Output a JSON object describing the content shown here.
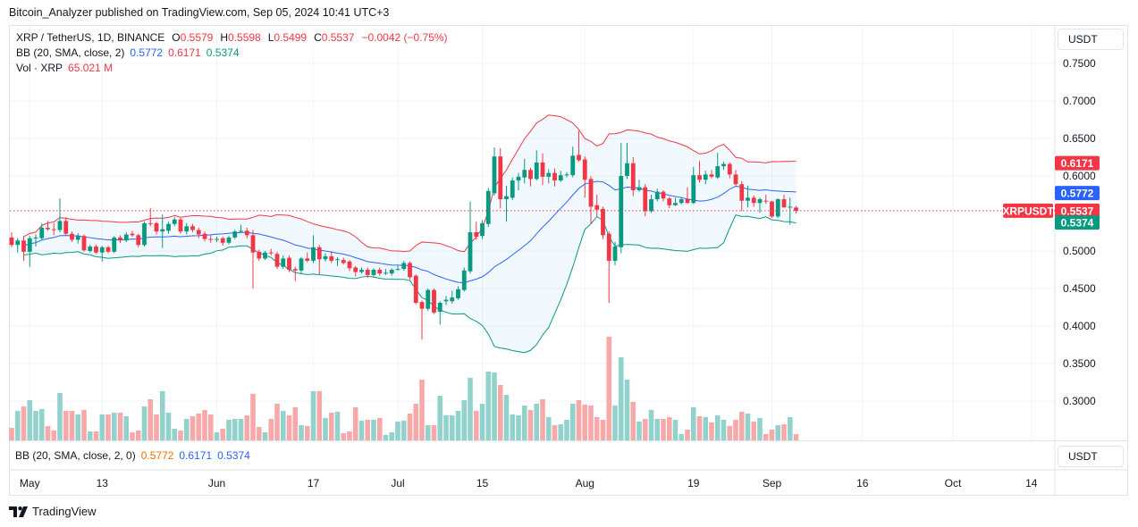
{
  "header": {
    "published": "Bitcoin_Analyzer published on TradingView.com, Sep 05, 2024 10:41 UTC+3"
  },
  "legend": {
    "symbol": "XRP / TetherUS, 1D, BINANCE",
    "o_label": "O",
    "o": "0.5579",
    "h_label": "H",
    "h": "0.5598",
    "l_label": "L",
    "l": "0.5499",
    "c_label": "C",
    "c": "0.5537",
    "change": "−0.0042 (−0.75%)",
    "bb_label": "BB (20, SMA, close, 2)",
    "bb_basis": "0.5772",
    "bb_upper": "0.6171",
    "bb_lower": "0.5374",
    "vol_label": "Vol · XRP",
    "vol": "65.021 M"
  },
  "bb_pane": {
    "label": "BB (20, SMA, close, 2, 0)",
    "v1": "0.5772",
    "v2": "0.6171",
    "v3": "0.5374"
  },
  "currency_button": "USDT",
  "currency_button_2": "USDT",
  "logo": {
    "text": "TradingView"
  },
  "price_tags": {
    "upper": "0.6171",
    "basis": "0.5772",
    "symbol": "XRPUSDT",
    "last": "0.5537",
    "lower": "0.5374",
    "volume": "65.021 M"
  },
  "colors": {
    "up": "#089981",
    "down": "#f23645",
    "bb_basis": "#2962ff",
    "bb_upper": "#f23645",
    "bb_lower": "#089981",
    "vol_up": "#92d2cc",
    "vol_down": "#f7a9a9",
    "grid": "#f0f3fa"
  },
  "icons": {
    "logo": "tradingview-logo"
  },
  "chart_data": {
    "type": "candlestick",
    "symbol": "XRPUSDT",
    "interval": "1D",
    "indicators": [
      "Bollinger Bands (20, SMA, close, 2)",
      "Volume"
    ],
    "last_price": 0.5537,
    "bb_last": {
      "basis": 0.5772,
      "upper": 0.6171,
      "lower": 0.5374
    },
    "ylim": [
      0.28,
      0.78
    ],
    "yticks": [
      {
        "value": 0.75,
        "label": "0.7500"
      },
      {
        "value": 0.7,
        "label": "0.7000"
      },
      {
        "value": 0.65,
        "label": "0.6500"
      },
      {
        "value": 0.6,
        "label": "0.6000"
      },
      {
        "value": 0.5,
        "label": "0.5000"
      },
      {
        "value": 0.45,
        "label": "0.4500"
      },
      {
        "value": 0.4,
        "label": "0.4000"
      },
      {
        "value": 0.35,
        "label": "0.3500"
      },
      {
        "value": 0.3,
        "label": "0.3000"
      }
    ],
    "xticks": [
      {
        "date": "2024-05-01",
        "label": "May"
      },
      {
        "date": "2024-05-13",
        "label": "13"
      },
      {
        "date": "2024-06-01",
        "label": "Jun"
      },
      {
        "date": "2024-06-17",
        "label": "17"
      },
      {
        "date": "2024-07-01",
        "label": "Jul"
      },
      {
        "date": "2024-07-15",
        "label": "15"
      },
      {
        "date": "2024-08-01",
        "label": "Aug"
      },
      {
        "date": "2024-08-19",
        "label": "19"
      },
      {
        "date": "2024-09-01",
        "label": "Sep"
      },
      {
        "date": "2024-09-16",
        "label": "16"
      },
      {
        "date": "2024-10-01",
        "label": "Oct"
      },
      {
        "date": "2024-10-14",
        "label": "14"
      }
    ],
    "volume_unit": "M",
    "columns": [
      "date",
      "open",
      "high",
      "low",
      "close",
      "volume"
    ],
    "candles": [
      [
        "2024-04-28",
        0.518,
        0.525,
        0.505,
        0.508,
        130
      ],
      [
        "2024-04-29",
        0.508,
        0.517,
        0.498,
        0.514,
        307
      ],
      [
        "2024-04-30",
        0.514,
        0.52,
        0.487,
        0.499,
        353
      ],
      [
        "2024-05-01",
        0.499,
        0.52,
        0.479,
        0.517,
        419
      ],
      [
        "2024-05-02",
        0.517,
        0.522,
        0.506,
        0.518,
        307
      ],
      [
        "2024-05-03",
        0.517,
        0.537,
        0.515,
        0.531,
        326
      ],
      [
        "2024-05-04",
        0.531,
        0.54,
        0.527,
        0.529,
        149
      ],
      [
        "2024-05-05",
        0.529,
        0.537,
        0.521,
        0.528,
        102
      ],
      [
        "2024-05-06",
        0.528,
        0.57,
        0.525,
        0.54,
        493
      ],
      [
        "2024-05-07",
        0.54,
        0.545,
        0.52,
        0.523,
        307
      ],
      [
        "2024-05-08",
        0.523,
        0.526,
        0.512,
        0.515,
        307
      ],
      [
        "2024-05-09",
        0.515,
        0.524,
        0.51,
        0.52,
        270
      ],
      [
        "2024-05-10",
        0.52,
        0.522,
        0.499,
        0.501,
        316
      ],
      [
        "2024-05-11",
        0.5,
        0.508,
        0.498,
        0.506,
        93
      ],
      [
        "2024-05-12",
        0.506,
        0.508,
        0.496,
        0.498,
        93
      ],
      [
        "2024-05-13",
        0.498,
        0.507,
        0.486,
        0.505,
        270
      ],
      [
        "2024-05-14",
        0.505,
        0.507,
        0.497,
        0.499,
        270
      ],
      [
        "2024-05-15",
        0.499,
        0.52,
        0.497,
        0.518,
        288
      ],
      [
        "2024-05-16",
        0.518,
        0.521,
        0.511,
        0.514,
        288
      ],
      [
        "2024-05-17",
        0.514,
        0.525,
        0.512,
        0.522,
        251
      ],
      [
        "2024-05-18",
        0.523,
        0.527,
        0.519,
        0.521,
        84
      ],
      [
        "2024-05-19",
        0.521,
        0.523,
        0.505,
        0.508,
        102
      ],
      [
        "2024-05-20",
        0.508,
        0.539,
        0.506,
        0.537,
        353
      ],
      [
        "2024-05-21",
        0.537,
        0.557,
        0.533,
        0.536,
        428
      ],
      [
        "2024-05-22",
        0.537,
        0.539,
        0.522,
        0.526,
        270
      ],
      [
        "2024-05-23",
        0.526,
        0.549,
        0.504,
        0.529,
        512
      ],
      [
        "2024-05-24",
        0.527,
        0.539,
        0.523,
        0.536,
        288
      ],
      [
        "2024-05-25",
        0.536,
        0.545,
        0.533,
        0.542,
        121
      ],
      [
        "2024-05-26",
        0.542,
        0.544,
        0.523,
        0.526,
        102
      ],
      [
        "2024-05-27",
        0.526,
        0.537,
        0.522,
        0.533,
        223
      ],
      [
        "2024-05-28",
        0.533,
        0.536,
        0.525,
        0.528,
        251
      ],
      [
        "2024-05-29",
        0.528,
        0.531,
        0.517,
        0.522,
        279
      ],
      [
        "2024-05-30",
        0.523,
        0.526,
        0.513,
        0.516,
        316
      ],
      [
        "2024-05-31",
        0.516,
        0.521,
        0.511,
        0.515,
        270
      ],
      [
        "2024-06-01",
        0.515,
        0.519,
        0.512,
        0.516,
        84
      ],
      [
        "2024-06-02",
        0.517,
        0.519,
        0.507,
        0.511,
        121
      ],
      [
        "2024-06-03",
        0.511,
        0.52,
        0.509,
        0.518,
        214
      ],
      [
        "2024-06-04",
        0.518,
        0.528,
        0.516,
        0.526,
        223
      ],
      [
        "2024-06-05",
        0.526,
        0.535,
        0.524,
        0.527,
        223
      ],
      [
        "2024-06-06",
        0.527,
        0.531,
        0.517,
        0.521,
        260
      ],
      [
        "2024-06-07",
        0.521,
        0.528,
        0.45,
        0.498,
        484
      ],
      [
        "2024-06-08",
        0.499,
        0.502,
        0.487,
        0.49,
        140
      ],
      [
        "2024-06-09",
        0.49,
        0.5,
        0.488,
        0.498,
        84
      ],
      [
        "2024-06-10",
        0.498,
        0.503,
        0.494,
        0.497,
        223
      ],
      [
        "2024-06-11",
        0.496,
        0.499,
        0.476,
        0.479,
        381
      ],
      [
        "2024-06-12",
        0.479,
        0.494,
        0.476,
        0.49,
        307
      ],
      [
        "2024-06-13",
        0.491,
        0.494,
        0.472,
        0.475,
        260
      ],
      [
        "2024-06-14",
        0.476,
        0.479,
        0.46,
        0.474,
        344
      ],
      [
        "2024-06-15",
        0.474,
        0.492,
        0.47,
        0.49,
        158
      ],
      [
        "2024-06-16",
        0.49,
        0.498,
        0.485,
        0.487,
        149
      ],
      [
        "2024-06-17",
        0.487,
        0.521,
        0.484,
        0.505,
        512
      ],
      [
        "2024-06-18",
        0.505,
        0.508,
        0.469,
        0.489,
        512
      ],
      [
        "2024-06-19",
        0.489,
        0.497,
        0.486,
        0.493,
        233
      ],
      [
        "2024-06-20",
        0.493,
        0.5,
        0.484,
        0.487,
        288
      ],
      [
        "2024-06-21",
        0.488,
        0.492,
        0.48,
        0.489,
        298
      ],
      [
        "2024-06-22",
        0.488,
        0.491,
        0.482,
        0.484,
        74
      ],
      [
        "2024-06-23",
        0.486,
        0.488,
        0.473,
        0.477,
        93
      ],
      [
        "2024-06-24",
        0.478,
        0.48,
        0.466,
        0.472,
        344
      ],
      [
        "2024-06-25",
        0.472,
        0.478,
        0.47,
        0.475,
        205
      ],
      [
        "2024-06-26",
        0.475,
        0.478,
        0.464,
        0.468,
        214
      ],
      [
        "2024-06-27",
        0.468,
        0.477,
        0.466,
        0.475,
        214
      ],
      [
        "2024-06-28",
        0.475,
        0.478,
        0.467,
        0.47,
        233
      ],
      [
        "2024-06-29",
        0.47,
        0.476,
        0.468,
        0.471,
        56
      ],
      [
        "2024-06-30",
        0.47,
        0.477,
        0.467,
        0.475,
        84
      ],
      [
        "2024-07-01",
        0.475,
        0.48,
        0.474,
        0.476,
        195
      ],
      [
        "2024-07-02",
        0.476,
        0.487,
        0.474,
        0.484,
        205
      ],
      [
        "2024-07-03",
        0.484,
        0.486,
        0.462,
        0.465,
        279
      ],
      [
        "2024-07-04",
        0.467,
        0.469,
        0.429,
        0.431,
        381
      ],
      [
        "2024-07-05",
        0.432,
        0.434,
        0.382,
        0.423,
        632
      ],
      [
        "2024-07-06",
        0.423,
        0.45,
        0.42,
        0.448,
        158
      ],
      [
        "2024-07-07",
        0.448,
        0.45,
        0.416,
        0.418,
        158
      ],
      [
        "2024-07-08",
        0.419,
        0.433,
        0.402,
        0.431,
        465
      ],
      [
        "2024-07-09",
        0.433,
        0.44,
        0.428,
        0.435,
        260
      ],
      [
        "2024-07-10",
        0.433,
        0.447,
        0.43,
        0.438,
        260
      ],
      [
        "2024-07-11",
        0.437,
        0.453,
        0.435,
        0.449,
        307
      ],
      [
        "2024-07-12",
        0.448,
        0.478,
        0.446,
        0.474,
        419
      ],
      [
        "2024-07-13",
        0.473,
        0.566,
        0.47,
        0.525,
        651
      ],
      [
        "2024-07-14",
        0.525,
        0.539,
        0.515,
        0.519,
        307
      ],
      [
        "2024-07-15",
        0.52,
        0.541,
        0.516,
        0.537,
        381
      ],
      [
        "2024-07-16",
        0.536,
        0.584,
        0.532,
        0.58,
        716
      ],
      [
        "2024-07-17",
        0.577,
        0.638,
        0.574,
        0.626,
        707
      ],
      [
        "2024-07-18",
        0.626,
        0.637,
        0.557,
        0.569,
        577
      ],
      [
        "2024-07-19",
        0.569,
        0.587,
        0.539,
        0.573,
        474
      ],
      [
        "2024-07-20",
        0.571,
        0.598,
        0.568,
        0.594,
        270
      ],
      [
        "2024-07-21",
        0.594,
        0.604,
        0.581,
        0.599,
        260
      ],
      [
        "2024-07-22",
        0.598,
        0.623,
        0.59,
        0.608,
        363
      ],
      [
        "2024-07-23",
        0.608,
        0.611,
        0.586,
        0.596,
        316
      ],
      [
        "2024-07-24",
        0.596,
        0.634,
        0.594,
        0.618,
        381
      ],
      [
        "2024-07-25",
        0.618,
        0.63,
        0.588,
        0.599,
        428
      ],
      [
        "2024-07-26",
        0.599,
        0.609,
        0.59,
        0.604,
        242
      ],
      [
        "2024-07-27",
        0.604,
        0.61,
        0.586,
        0.594,
        158
      ],
      [
        "2024-07-28",
        0.594,
        0.607,
        0.592,
        0.601,
        167
      ],
      [
        "2024-07-29",
        0.601,
        0.605,
        0.598,
        0.602,
        214
      ],
      [
        "2024-07-30",
        0.601,
        0.639,
        0.598,
        0.627,
        381
      ],
      [
        "2024-07-31",
        0.628,
        0.66,
        0.619,
        0.621,
        419
      ],
      [
        "2024-08-01",
        0.622,
        0.626,
        0.571,
        0.595,
        372
      ],
      [
        "2024-08-02",
        0.596,
        0.6,
        0.537,
        0.559,
        363
      ],
      [
        "2024-08-03",
        0.561,
        0.575,
        0.546,
        0.555,
        242
      ],
      [
        "2024-08-04",
        0.556,
        0.559,
        0.516,
        0.521,
        214
      ],
      [
        "2024-08-05",
        0.523,
        0.526,
        0.431,
        0.487,
        1079
      ],
      [
        "2024-08-06",
        0.487,
        0.512,
        0.481,
        0.506,
        363
      ],
      [
        "2024-08-07",
        0.505,
        0.644,
        0.497,
        0.6,
        865
      ],
      [
        "2024-08-08",
        0.6,
        0.644,
        0.596,
        0.617,
        632
      ],
      [
        "2024-08-09",
        0.617,
        0.625,
        0.573,
        0.581,
        400
      ],
      [
        "2024-08-10",
        0.581,
        0.595,
        0.579,
        0.585,
        195
      ],
      [
        "2024-08-11",
        0.585,
        0.589,
        0.546,
        0.553,
        223
      ],
      [
        "2024-08-12",
        0.553,
        0.575,
        0.551,
        0.569,
        316
      ],
      [
        "2024-08-13",
        0.569,
        0.583,
        0.566,
        0.579,
        223
      ],
      [
        "2024-08-14",
        0.579,
        0.581,
        0.566,
        0.57,
        223
      ],
      [
        "2024-08-15",
        0.57,
        0.572,
        0.557,
        0.561,
        242
      ],
      [
        "2024-08-16",
        0.561,
        0.571,
        0.56,
        0.564,
        214
      ],
      [
        "2024-08-17",
        0.564,
        0.572,
        0.562,
        0.569,
        65
      ],
      [
        "2024-08-18",
        0.569,
        0.585,
        0.563,
        0.564,
        112
      ],
      [
        "2024-08-19",
        0.564,
        0.612,
        0.563,
        0.601,
        344
      ],
      [
        "2024-08-20",
        0.601,
        0.62,
        0.591,
        0.595,
        251
      ],
      [
        "2024-08-21",
        0.595,
        0.607,
        0.589,
        0.602,
        242
      ],
      [
        "2024-08-22",
        0.602,
        0.608,
        0.597,
        0.599,
        186
      ],
      [
        "2024-08-23",
        0.598,
        0.631,
        0.596,
        0.613,
        260
      ],
      [
        "2024-08-24",
        0.613,
        0.619,
        0.608,
        0.616,
        214
      ],
      [
        "2024-08-25",
        0.616,
        0.618,
        0.597,
        0.602,
        149
      ],
      [
        "2024-08-26",
        0.602,
        0.608,
        0.587,
        0.589,
        214
      ],
      [
        "2024-08-27",
        0.589,
        0.593,
        0.553,
        0.567,
        298
      ],
      [
        "2024-08-28",
        0.567,
        0.587,
        0.558,
        0.571,
        279
      ],
      [
        "2024-08-29",
        0.571,
        0.574,
        0.559,
        0.564,
        195
      ],
      [
        "2024-08-30",
        0.564,
        0.571,
        0.551,
        0.569,
        233
      ],
      [
        "2024-08-31",
        0.567,
        0.575,
        0.563,
        0.566,
        65
      ],
      [
        "2024-09-01",
        0.566,
        0.567,
        0.544,
        0.546,
        112
      ],
      [
        "2024-09-02",
        0.546,
        0.57,
        0.544,
        0.569,
        158
      ],
      [
        "2024-09-03",
        0.569,
        0.575,
        0.558,
        0.558,
        167
      ],
      [
        "2024-09-04",
        0.558,
        0.571,
        0.535,
        0.559,
        242
      ],
      [
        "2024-09-05",
        0.5579,
        0.5598,
        0.5499,
        0.5537,
        65.021
      ]
    ]
  }
}
